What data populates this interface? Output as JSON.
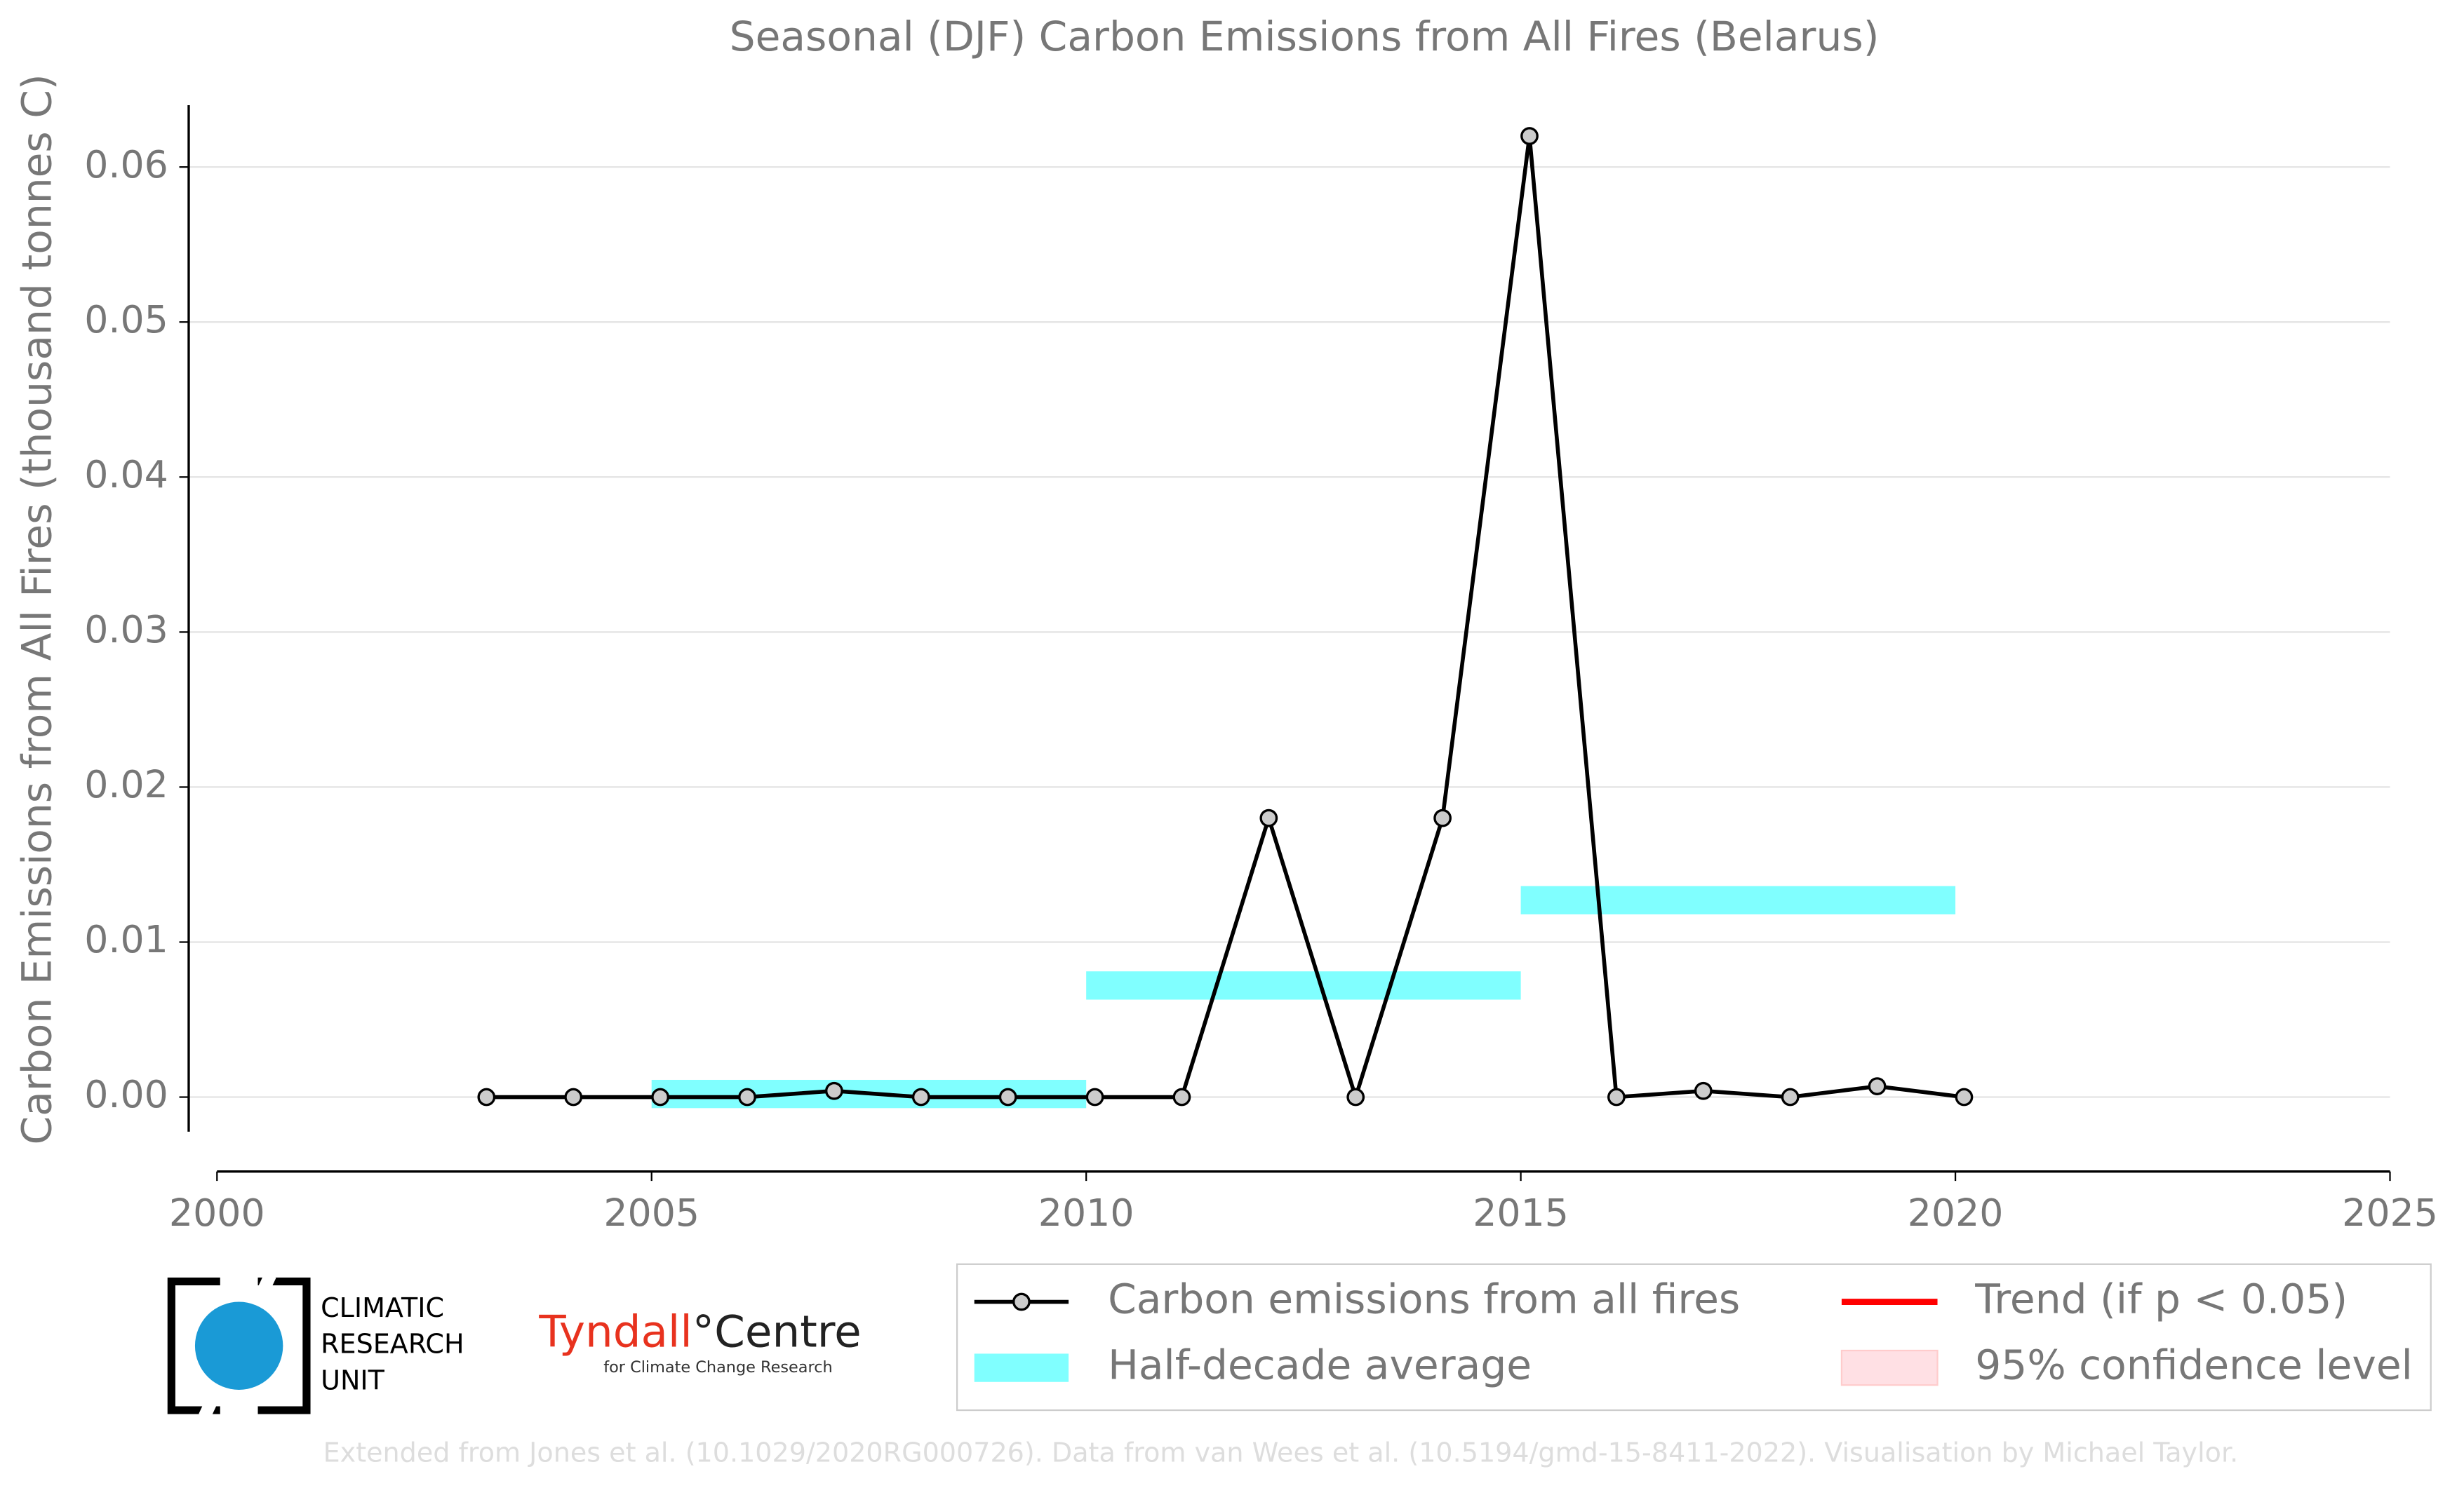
{
  "chart_data": {
    "type": "line",
    "title": "Seasonal (DJF) Carbon Emissions from All Fires (Belarus)",
    "y_label": "Carbon Emissions from All Fires (thousand tonnes C)",
    "x": [
      2003.1,
      2004.1,
      2005.1,
      2006.1,
      2007.1,
      2008.1,
      2009.1,
      2010.1,
      2011.1,
      2012.1,
      2013.1,
      2014.1,
      2015.1,
      2016.1,
      2017.1,
      2018.1,
      2019.1,
      2020.1
    ],
    "series": [
      {
        "name": "Carbon emissions from all fires",
        "color": "#000000",
        "values": [
          0,
          0,
          0,
          0,
          0.0004,
          0,
          0,
          0,
          0,
          0.018,
          0,
          0.018,
          0.062,
          0,
          0.0004,
          0,
          0.0007,
          0
        ]
      }
    ],
    "half_decade": {
      "name": "Half-decade average",
      "color": "#80ffff",
      "starts": [
        2005,
        2010,
        2015
      ],
      "ends": [
        2010,
        2015,
        2020
      ],
      "values": [
        0.0002,
        0.0072,
        0.0127
      ]
    },
    "trend": {
      "name": "Trend (if p < 0.05)",
      "color": "#ff0000"
    },
    "confidence": {
      "name": "95% confidence level",
      "color": "#ffe0e4"
    },
    "xlim": [
      2000,
      2025
    ],
    "xticks": [
      2000,
      2005,
      2010,
      2015,
      2020,
      2025
    ],
    "ylim": [
      -0.0048,
      0.065
    ],
    "yticks": [
      {
        "value": 0,
        "label": "0.00"
      },
      {
        "value": 0.01,
        "label": "0.01"
      },
      {
        "value": 0.02,
        "label": "0.02"
      },
      {
        "value": 0.03,
        "label": "0.03"
      },
      {
        "value": 0.04,
        "label": "0.04"
      },
      {
        "value": 0.05,
        "label": "0.05"
      },
      {
        "value": 0.06,
        "label": "0.06"
      }
    ],
    "grid": true
  },
  "logos": {
    "cru": [
      "CLIMATIC",
      "RESEARCH",
      "UNIT"
    ],
    "tyndall": "Tyndall",
    "centre": "°Centre",
    "tyndall_sub": "for Climate Change Research"
  },
  "footer": "Extended from Jones et al. (10.1029/2020RG000726). Data from van Wees et al. (10.5194/gmd-15-8411-2022). Visualisation by Michael Taylor."
}
